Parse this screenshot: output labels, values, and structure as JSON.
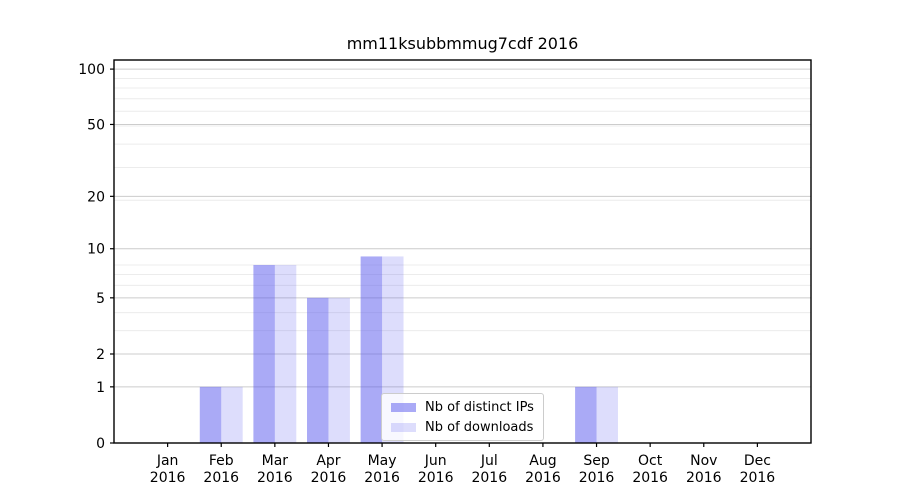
{
  "chart_data": {
    "type": "bar",
    "title": "mm11ksubbmmug7cdf 2016",
    "categories": [
      "Jan",
      "Feb",
      "Mar",
      "Apr",
      "May",
      "Jun",
      "Jul",
      "Aug",
      "Sep",
      "Oct",
      "Nov",
      "Dec"
    ],
    "category_year": "2016",
    "series": [
      {
        "name": "Nb of distinct IPs",
        "color": "rgba(85,85,238,0.5)",
        "values": [
          0,
          1,
          8,
          5,
          9,
          0,
          0,
          0,
          1,
          0,
          0,
          0
        ]
      },
      {
        "name": "Nb of downloads",
        "color": "rgba(85,85,238,0.2)",
        "values": [
          0,
          1,
          8,
          5,
          9,
          0,
          0,
          0,
          1,
          0,
          0,
          0
        ]
      }
    ],
    "xlabel": "",
    "ylabel": "",
    "yscale": "log1p",
    "ylim": [
      0,
      112
    ],
    "y_ticks": [
      0,
      1,
      2,
      5,
      10,
      20,
      50,
      100
    ],
    "y_minor_gridlines": [
      3,
      4,
      6,
      7,
      8,
      19,
      29,
      39,
      49,
      59,
      69,
      79,
      89
    ],
    "grid": "horizontal",
    "legend_position": "lower-center-inside",
    "colors": {
      "major_grid": "#cccccc",
      "minor_grid": "#ececec",
      "spine": "#000000",
      "tick": "#000000",
      "text": "#000000"
    }
  }
}
